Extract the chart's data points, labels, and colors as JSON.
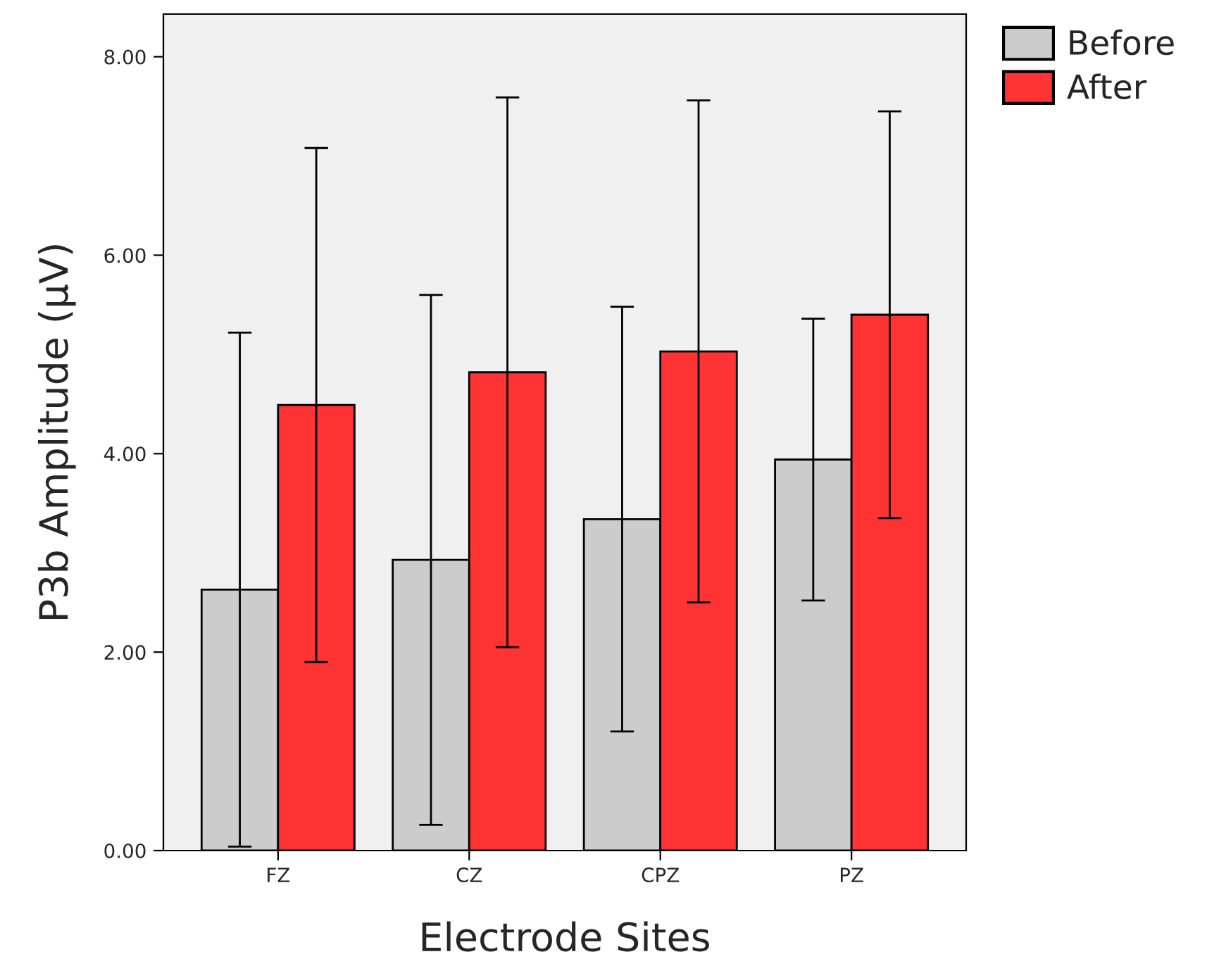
{
  "chart_data": {
    "type": "bar",
    "xlabel": "Electrode Sites",
    "ylabel": "P3b Amplitude (µV)",
    "categories": [
      "FZ",
      "CZ",
      "CPZ",
      "PZ"
    ],
    "series": [
      {
        "name": "Before",
        "color": "#cccccc",
        "values": [
          2.63,
          2.93,
          3.34,
          3.94
        ],
        "errors": [
          2.59,
          2.67,
          2.14,
          1.42
        ]
      },
      {
        "name": "After",
        "color": "#ff3333",
        "values": [
          4.49,
          4.82,
          5.03,
          5.4
        ],
        "errors": [
          2.59,
          2.77,
          2.53,
          2.05
        ]
      }
    ],
    "ylim": [
      0,
      8.43
    ],
    "yticks": [
      {
        "value": 0,
        "label": "0.00"
      },
      {
        "value": 2,
        "label": "2.00"
      },
      {
        "value": 4,
        "label": "4.00"
      },
      {
        "value": 6,
        "label": "6.00"
      },
      {
        "value": 8,
        "label": "8.00"
      }
    ],
    "grid": false,
    "legend": "top right"
  }
}
